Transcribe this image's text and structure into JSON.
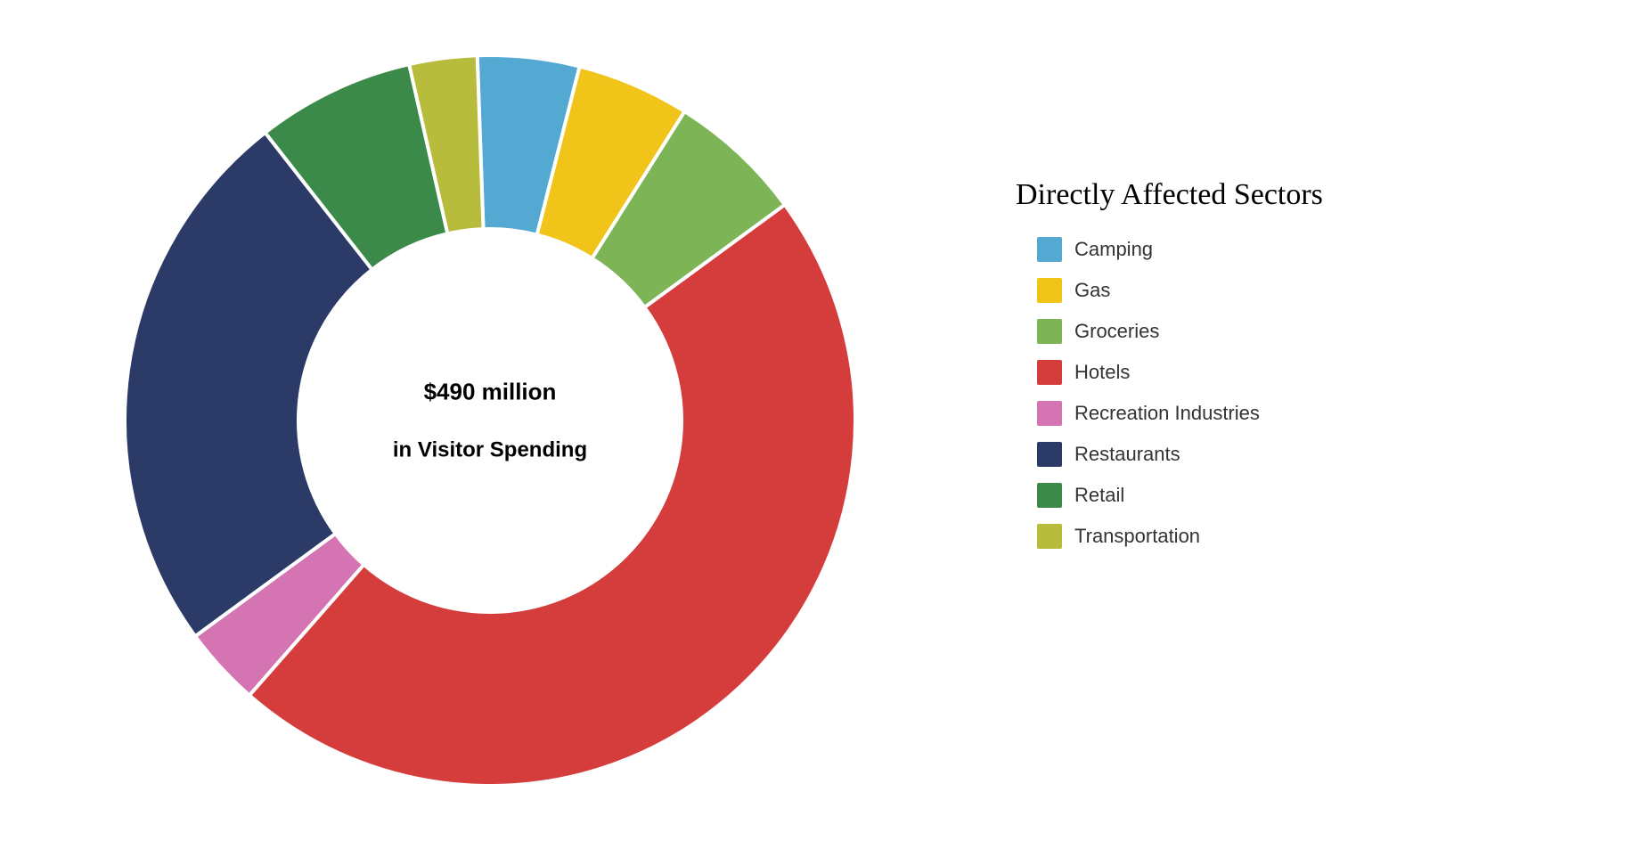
{
  "chart": {
    "type": "donut",
    "background_color": "#ffffff",
    "slice_gap_color": "#ffffff",
    "slice_gap_width": 4,
    "outer_radius": 410,
    "inner_radius": 215,
    "center_text_line1": "$490 million",
    "center_text_line2": "in Visitor Spending",
    "center_text_fontsize_line1": 26,
    "center_text_fontsize_line2": 24,
    "center_text_color": "#000000",
    "start_angle_deg": -2,
    "slices": [
      {
        "label": "Camping",
        "value": 4.5,
        "color": "#54a9d3"
      },
      {
        "label": "Gas",
        "value": 5.0,
        "color": "#f0c419"
      },
      {
        "label": "Groceries",
        "value": 6.0,
        "color": "#7db456"
      },
      {
        "label": "Hotels",
        "value": 46.5,
        "color": "#d53c3c"
      },
      {
        "label": "Recreation Industries",
        "value": 3.5,
        "color": "#d474b3"
      },
      {
        "label": "Restaurants",
        "value": 24.5,
        "color": "#2b3a67"
      },
      {
        "label": "Retail",
        "value": 7.0,
        "color": "#3b8a4a"
      },
      {
        "label": "Transportation",
        "value": 3.0,
        "color": "#b8bc3c"
      }
    ]
  },
  "legend": {
    "title": "Directly Affected Sectors",
    "title_fontsize": 34,
    "title_color": "#000000",
    "label_fontsize": 22,
    "label_color": "#333333",
    "swatch_size": 28
  }
}
